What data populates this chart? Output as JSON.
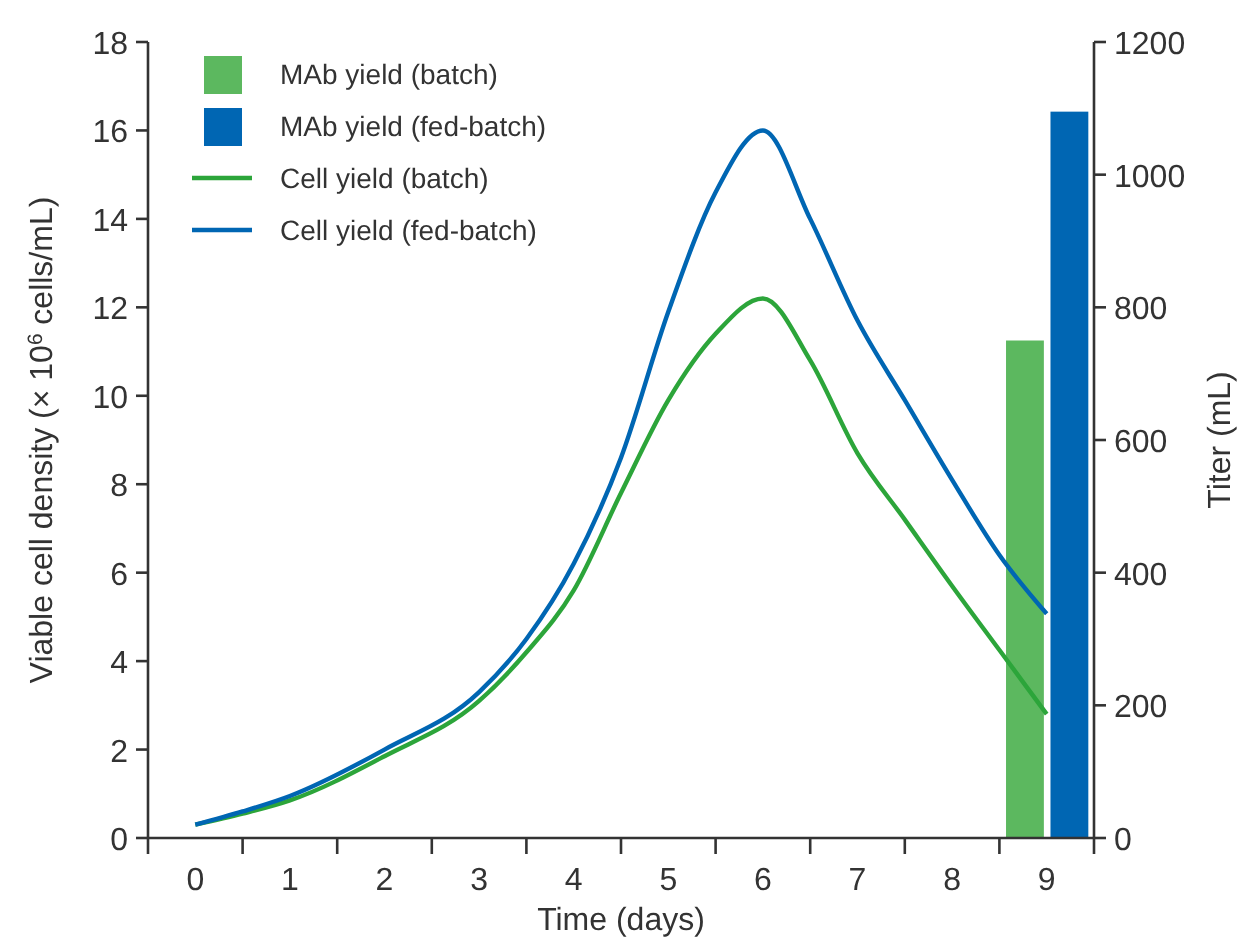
{
  "chart_data": {
    "type": "line",
    "xlabel": "Time (days)",
    "ylabel": "Viable cell density (× 10$^{6}$ cells/mL)",
    "y2label": "Titer (mL)",
    "xlim": [
      -0.5,
      9.5
    ],
    "xticks": [
      {
        "value": -0.5,
        "label": null
      },
      0,
      {
        "value": 0.5,
        "label": null
      },
      1,
      {
        "value": 1.5,
        "label": null
      },
      2,
      {
        "value": 2.5,
        "label": null
      },
      3,
      {
        "value": 3.5,
        "label": null
      },
      4,
      {
        "value": 4.5,
        "label": null
      },
      5,
      {
        "value": 5.5,
        "label": null
      },
      6,
      {
        "value": 6.5,
        "label": null
      },
      7,
      {
        "value": 7.5,
        "label": null
      },
      8,
      {
        "value": 8.5,
        "label": null
      },
      9,
      {
        "value": 9.5,
        "label": null
      }
    ],
    "ylim": [
      0,
      18
    ],
    "yticks": [
      0,
      2,
      4,
      6,
      8,
      10,
      12,
      14,
      16,
      18
    ],
    "y2lim": [
      0,
      1200
    ],
    "y2ticks": [
      0,
      200,
      400,
      600,
      800,
      1000,
      1200
    ],
    "grid": false,
    "legend": "top left",
    "marker": "none",
    "line_style": "solid",
    "series": [
      {
        "name": "MAb yield (batch)",
        "type": "bar",
        "axis": "y2",
        "color": "#5cb85f",
        "x": [
          8.77
        ],
        "values": [
          750
        ]
      },
      {
        "name": "MAb yield (fed-batch)",
        "type": "bar",
        "axis": "y2",
        "color": "#0066b3",
        "x": [
          9.24
        ],
        "values": [
          1095
        ]
      },
      {
        "name": "Cell yield (batch)",
        "color": "#2ca53a",
        "x": [
          0,
          0.5,
          1,
          2,
          3,
          3.5,
          4,
          4.5,
          5,
          5.5,
          6,
          6.5,
          7,
          7.5,
          8,
          8.5,
          9
        ],
        "values": [
          0.3,
          0.55,
          0.85,
          1.85,
          3.1,
          4.2,
          5.6,
          7.8,
          9.9,
          11.4,
          12.2,
          10.8,
          8.7,
          7.2,
          5.7,
          4.25,
          2.8
        ]
      },
      {
        "name": "Cell yield (fed-batch)",
        "color": "#0066b3",
        "x": [
          0,
          0.5,
          1,
          2,
          3,
          3.5,
          4,
          4.5,
          5,
          5.5,
          6,
          6.5,
          7,
          7.5,
          8,
          8.5,
          9
        ],
        "values": [
          0.3,
          0.6,
          0.95,
          2.0,
          3.3,
          4.5,
          6.2,
          8.6,
          11.9,
          14.6,
          16.0,
          14.0,
          11.7,
          9.9,
          8.1,
          6.4,
          5.07
        ]
      }
    ]
  }
}
